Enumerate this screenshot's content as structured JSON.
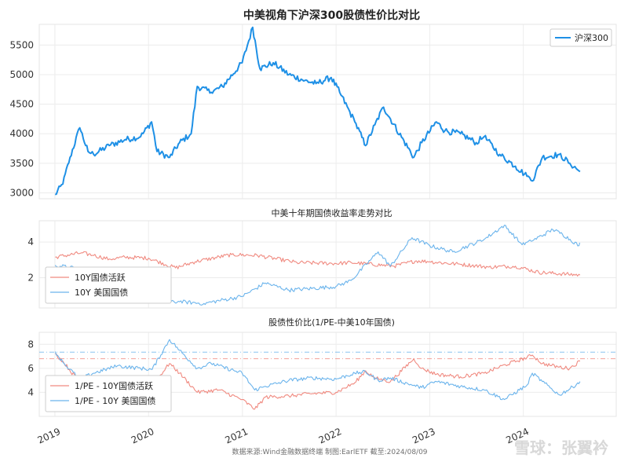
{
  "footer": {
    "source": "数据来源:Wind金融数据终端  制图:EarlETF 截至:2024/08/09",
    "watermark": "雪球：张翼衿"
  },
  "x_ticks": [
    "2019",
    "2020",
    "2021",
    "2022",
    "2023",
    "2024"
  ],
  "chart_data": [
    {
      "type": "line",
      "title": "中美视角下沪深300股债性价比对比",
      "legend_placement": "top-right",
      "grid": true,
      "ylim": [
        2900,
        5850
      ],
      "yticks": [
        "3000",
        "3500",
        "4000",
        "4500",
        "5000",
        "5500"
      ],
      "series": [
        {
          "name": "沪深300",
          "color": "#1e90e6",
          "x": [
            "2019-01-02",
            "2019-02-01",
            "2019-03-01",
            "2019-04-08",
            "2019-05-10",
            "2019-06-01",
            "2019-08-01",
            "2019-10-01",
            "2019-12-01",
            "2020-01-13",
            "2020-02-03",
            "2020-03-23",
            "2020-05-01",
            "2020-06-15",
            "2020-07-09",
            "2020-09-01",
            "2020-10-15",
            "2020-12-31",
            "2021-02-10",
            "2021-03-10",
            "2021-05-01",
            "2021-07-01",
            "2021-09-01",
            "2021-10-15",
            "2021-12-13",
            "2022-01-15",
            "2022-03-15",
            "2022-04-26",
            "2022-06-01",
            "2022-07-05",
            "2022-08-01",
            "2022-10-31",
            "2022-12-01",
            "2023-01-27",
            "2023-03-01",
            "2023-05-01",
            "2023-07-01",
            "2023-08-01",
            "2023-10-01",
            "2023-12-01",
            "2024-01-15",
            "2024-02-05",
            "2024-03-15",
            "2024-05-20",
            "2024-06-30",
            "2024-08-09"
          ],
          "values": [
            2970,
            3150,
            3600,
            4100,
            3700,
            3650,
            3800,
            3900,
            3950,
            4200,
            3700,
            3600,
            3850,
            4000,
            4800,
            4700,
            4800,
            5200,
            5800,
            5100,
            5200,
            5000,
            4900,
            4850,
            4950,
            4700,
            4200,
            3800,
            4150,
            4450,
            4250,
            3600,
            3850,
            4200,
            4050,
            4000,
            3850,
            3950,
            3650,
            3450,
            3280,
            3200,
            3600,
            3650,
            3500,
            3360
          ]
        }
      ]
    },
    {
      "type": "line",
      "title": "中美十年期国债收益率走势对比",
      "legend_placement": "bottom-left",
      "grid": true,
      "ylim": [
        0.3,
        5.2
      ],
      "yticks": [
        "2",
        "4"
      ],
      "series": [
        {
          "name": "10Y国债活跃",
          "color": "#f08a80",
          "x": [
            "2019-01-02",
            "2019-04-15",
            "2019-06-01",
            "2019-08-01",
            "2019-10-01",
            "2020-01-01",
            "2020-04-15",
            "2020-07-01",
            "2020-11-20",
            "2021-03-01",
            "2021-08-01",
            "2021-12-31",
            "2022-03-01",
            "2022-08-15",
            "2022-11-10",
            "2023-01-01",
            "2023-05-01",
            "2023-08-20",
            "2023-12-01",
            "2024-03-01",
            "2024-08-09"
          ],
          "values": [
            3.15,
            3.4,
            3.25,
            3.05,
            3.15,
            3.1,
            2.55,
            2.9,
            3.3,
            3.25,
            2.85,
            2.8,
            2.85,
            2.65,
            2.95,
            2.9,
            2.75,
            2.6,
            2.65,
            2.3,
            2.15
          ]
        },
        {
          "name": "10Y 美国国债",
          "color": "#6bb4ec",
          "x": [
            "2019-01-02",
            "2019-04-01",
            "2019-06-01",
            "2019-09-01",
            "2019-11-01",
            "2020-01-01",
            "2020-02-15",
            "2020-03-09",
            "2020-05-01",
            "2020-08-04",
            "2020-12-31",
            "2021-03-31",
            "2021-07-01",
            "2021-12-31",
            "2022-03-01",
            "2022-06-14",
            "2022-08-01",
            "2022-10-24",
            "2023-01-01",
            "2023-04-01",
            "2023-06-01",
            "2023-08-01",
            "2023-10-19",
            "2023-12-27",
            "2024-02-01",
            "2024-04-25",
            "2024-06-01",
            "2024-08-05",
            "2024-08-09"
          ],
          "values": [
            2.7,
            2.5,
            2.1,
            1.55,
            1.85,
            1.9,
            1.55,
            0.6,
            0.65,
            0.55,
            0.95,
            1.7,
            1.3,
            1.5,
            1.85,
            3.45,
            2.65,
            4.25,
            3.8,
            3.45,
            3.8,
            4.15,
            4.95,
            3.85,
            4.05,
            4.7,
            4.45,
            3.8,
            3.95
          ]
        }
      ]
    },
    {
      "type": "line",
      "title": "股债性价比(1/PE-中美10年国债)",
      "legend_placement": "bottom-left",
      "grid": true,
      "ylim": [
        2.0,
        9.0
      ],
      "yticks": [
        "4",
        "6",
        "8"
      ],
      "reference_lines": [
        {
          "value": 6.8,
          "color": "#f08a80"
        },
        {
          "value": 7.35,
          "color": "#6bb4ec"
        }
      ],
      "series": [
        {
          "name": "1/PE - 10Y国债活跃",
          "color": "#f08a80",
          "x": [
            "2019-01-02",
            "2019-02-01",
            "2019-04-08",
            "2019-06-01",
            "2019-09-01",
            "2019-12-01",
            "2020-01-15",
            "2020-03-23",
            "2020-05-01",
            "2020-07-09",
            "2020-10-01",
            "2020-12-31",
            "2021-02-18",
            "2021-04-01",
            "2021-07-01",
            "2021-10-01",
            "2022-01-01",
            "2022-03-15",
            "2022-04-26",
            "2022-06-01",
            "2022-08-01",
            "2022-10-31",
            "2022-12-01",
            "2023-01-27",
            "2023-05-01",
            "2023-08-01",
            "2023-10-23",
            "2024-01-15",
            "2024-02-05",
            "2024-03-15",
            "2024-05-20",
            "2024-06-30",
            "2024-08-09"
          ],
          "values": [
            7.2,
            6.6,
            4.8,
            5.2,
            4.8,
            4.9,
            4.6,
            6.4,
            5.6,
            4.0,
            4.2,
            3.4,
            2.6,
            3.6,
            3.7,
            3.9,
            4.0,
            4.8,
            5.8,
            5.2,
            4.9,
            6.8,
            6.0,
            5.5,
            5.3,
            5.6,
            6.3,
            6.9,
            7.1,
            6.4,
            6.1,
            6.0,
            6.6
          ]
        },
        {
          "name": "1/PE - 10Y 美国国债",
          "color": "#6bb4ec",
          "x": [
            "2019-01-02",
            "2019-02-01",
            "2019-04-08",
            "2019-06-01",
            "2019-09-01",
            "2019-12-01",
            "2020-01-15",
            "2020-03-23",
            "2020-05-01",
            "2020-07-09",
            "2020-09-01",
            "2020-12-31",
            "2021-02-18",
            "2021-04-01",
            "2021-07-01",
            "2021-10-01",
            "2022-01-01",
            "2022-03-15",
            "2022-04-26",
            "2022-06-14",
            "2022-08-01",
            "2022-10-24",
            "2022-12-01",
            "2023-01-27",
            "2023-05-01",
            "2023-08-01",
            "2023-10-19",
            "2024-01-15",
            "2024-02-05",
            "2024-03-15",
            "2024-05-20",
            "2024-07-01",
            "2024-08-09"
          ],
          "values": [
            7.4,
            6.5,
            5.1,
            5.6,
            6.2,
            6.0,
            5.9,
            8.4,
            7.5,
            6.0,
            6.4,
            5.6,
            4.2,
            4.5,
            5.0,
            5.2,
            5.1,
            5.6,
            5.7,
            5.0,
            5.2,
            4.6,
            4.4,
            4.9,
            4.5,
            4.2,
            3.4,
            4.6,
            5.6,
            4.9,
            3.8,
            4.3,
            4.9
          ]
        }
      ]
    }
  ]
}
